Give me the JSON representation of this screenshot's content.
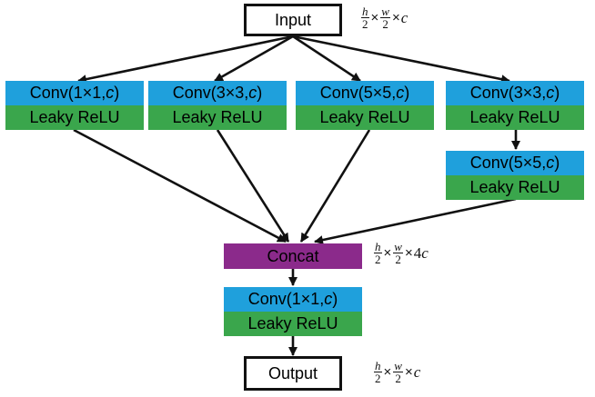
{
  "input": {
    "label": "Input"
  },
  "output": {
    "label": "Output"
  },
  "branches": [
    {
      "conv_prefix": "Conv(1×1, ",
      "conv_var": "c",
      "conv_suffix": ")",
      "act": "Leaky ReLU"
    },
    {
      "conv_prefix": "Conv(3×3, ",
      "conv_var": "c",
      "conv_suffix": ")",
      "act": "Leaky ReLU"
    },
    {
      "conv_prefix": "Conv(5×5, ",
      "conv_var": "c",
      "conv_suffix": ")",
      "act": "Leaky ReLU"
    },
    {
      "conv_prefix": "Conv(3×3, ",
      "conv_var": "c",
      "conv_suffix": ")",
      "act": "Leaky ReLU"
    },
    {
      "conv_prefix": "Conv(5×5, ",
      "conv_var": "c",
      "conv_suffix": ")",
      "act": "Leaky ReLU"
    }
  ],
  "concat": {
    "label": "Concat",
    "color": "#8b2a8b"
  },
  "final": {
    "conv_prefix": "Conv(1×1, ",
    "conv_var": "c",
    "conv_suffix": ")",
    "act": "Leaky ReLU"
  },
  "dims": {
    "input": {
      "h": "h",
      "w": "w",
      "den": "2",
      "times": "×",
      "factor": "",
      "c": "c"
    },
    "concat": {
      "h": "h",
      "w": "w",
      "den": "2",
      "times": "×",
      "factor": "4",
      "c": "c"
    },
    "output": {
      "h": "h",
      "w": "w",
      "den": "2",
      "times": "×",
      "factor": "",
      "c": "c"
    }
  },
  "colors": {
    "conv": "#1fa0dc",
    "act": "#3aa64c",
    "concat": "#8b2a8b",
    "line": "#111111"
  }
}
